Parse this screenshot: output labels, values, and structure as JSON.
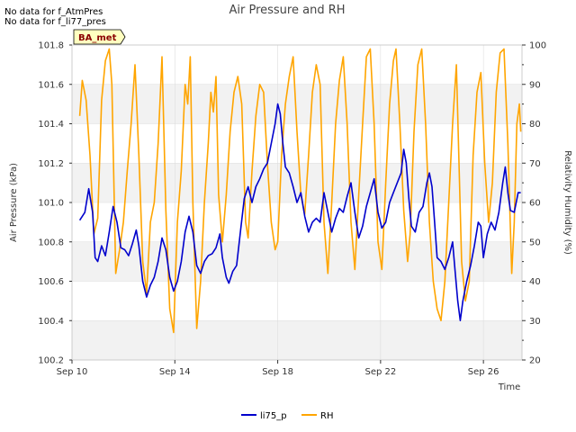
{
  "notes": [
    "No data for f_AtmPres",
    "No data for f_li77_pres"
  ],
  "site_badge": "BA_met",
  "colors": {
    "pressure": "#0000cc",
    "rh": "#ffa500",
    "band": "#f2f2f2",
    "grid": "#dddddd",
    "badge_bg": "#ffffc0",
    "badge_text": "#8b0000"
  },
  "chart_data": {
    "type": "line",
    "title": "Air Pressure and RH",
    "xlabel": "Time",
    "ylabel": "Air Pressure (kPa)",
    "y2label": "Relativity Humidity (%)",
    "xlim": [
      10.0,
      27.5
    ],
    "ylim": [
      100.2,
      101.8
    ],
    "y2lim": [
      20,
      100
    ],
    "xticks": [
      {
        "x": 10,
        "label": "Sep 10"
      },
      {
        "x": 14,
        "label": "Sep 14"
      },
      {
        "x": 18,
        "label": "Sep 18"
      },
      {
        "x": 22,
        "label": "Sep 22"
      },
      {
        "x": 26,
        "label": "Sep 26"
      }
    ],
    "yticks": [
      "100.2",
      "100.4",
      "100.6",
      "100.8",
      "101.0",
      "101.2",
      "101.4",
      "101.6",
      "101.8"
    ],
    "y2ticks": [
      "20",
      "30",
      "40",
      "50",
      "60",
      "70",
      "80",
      "90",
      "100"
    ],
    "legend_position": "bottom-center",
    "grid": true,
    "series": [
      {
        "name": "li75_p",
        "axis": "left",
        "color": "#0000cc",
        "points": [
          [
            10.3,
            100.91
          ],
          [
            10.5,
            100.95
          ],
          [
            10.65,
            101.07
          ],
          [
            10.8,
            100.95
          ],
          [
            10.9,
            100.72
          ],
          [
            11.0,
            100.7
          ],
          [
            11.15,
            100.78
          ],
          [
            11.3,
            100.73
          ],
          [
            11.45,
            100.85
          ],
          [
            11.6,
            100.98
          ],
          [
            11.75,
            100.9
          ],
          [
            11.9,
            100.77
          ],
          [
            12.05,
            100.76
          ],
          [
            12.2,
            100.73
          ],
          [
            12.35,
            100.79
          ],
          [
            12.5,
            100.86
          ],
          [
            12.6,
            100.78
          ],
          [
            12.75,
            100.6
          ],
          [
            12.9,
            100.52
          ],
          [
            13.05,
            100.58
          ],
          [
            13.2,
            100.62
          ],
          [
            13.35,
            100.7
          ],
          [
            13.5,
            100.82
          ],
          [
            13.65,
            100.76
          ],
          [
            13.8,
            100.62
          ],
          [
            13.95,
            100.55
          ],
          [
            14.1,
            100.6
          ],
          [
            14.25,
            100.7
          ],
          [
            14.4,
            100.85
          ],
          [
            14.55,
            100.93
          ],
          [
            14.7,
            100.85
          ],
          [
            14.85,
            100.68
          ],
          [
            15.0,
            100.64
          ],
          [
            15.15,
            100.7
          ],
          [
            15.3,
            100.73
          ],
          [
            15.45,
            100.74
          ],
          [
            15.6,
            100.77
          ],
          [
            15.75,
            100.84
          ],
          [
            15.85,
            100.72
          ],
          [
            16.0,
            100.62
          ],
          [
            16.1,
            100.59
          ],
          [
            16.25,
            100.65
          ],
          [
            16.4,
            100.68
          ],
          [
            16.55,
            100.85
          ],
          [
            16.7,
            101.02
          ],
          [
            16.85,
            101.08
          ],
          [
            17.0,
            101.0
          ],
          [
            17.15,
            101.08
          ],
          [
            17.3,
            101.12
          ],
          [
            17.45,
            101.17
          ],
          [
            17.6,
            101.2
          ],
          [
            17.75,
            101.3
          ],
          [
            17.9,
            101.4
          ],
          [
            18.0,
            101.5
          ],
          [
            18.1,
            101.45
          ],
          [
            18.2,
            101.3
          ],
          [
            18.3,
            101.18
          ],
          [
            18.45,
            101.15
          ],
          [
            18.6,
            101.08
          ],
          [
            18.75,
            101.0
          ],
          [
            18.9,
            101.05
          ],
          [
            19.05,
            100.93
          ],
          [
            19.2,
            100.85
          ],
          [
            19.35,
            100.9
          ],
          [
            19.5,
            100.92
          ],
          [
            19.65,
            100.9
          ],
          [
            19.8,
            101.05
          ],
          [
            19.95,
            100.95
          ],
          [
            20.1,
            100.85
          ],
          [
            20.25,
            100.92
          ],
          [
            20.4,
            100.97
          ],
          [
            20.55,
            100.95
          ],
          [
            20.7,
            101.03
          ],
          [
            20.85,
            101.1
          ],
          [
            21.0,
            100.95
          ],
          [
            21.15,
            100.82
          ],
          [
            21.3,
            100.88
          ],
          [
            21.45,
            100.98
          ],
          [
            21.6,
            101.05
          ],
          [
            21.75,
            101.12
          ],
          [
            21.9,
            100.95
          ],
          [
            22.05,
            100.87
          ],
          [
            22.2,
            100.9
          ],
          [
            22.35,
            101.0
          ],
          [
            22.5,
            101.05
          ],
          [
            22.65,
            101.1
          ],
          [
            22.8,
            101.15
          ],
          [
            22.9,
            101.27
          ],
          [
            23.0,
            101.2
          ],
          [
            23.1,
            101.02
          ],
          [
            23.2,
            100.88
          ],
          [
            23.35,
            100.85
          ],
          [
            23.5,
            100.95
          ],
          [
            23.65,
            100.98
          ],
          [
            23.8,
            101.1
          ],
          [
            23.9,
            101.15
          ],
          [
            24.0,
            101.08
          ],
          [
            24.1,
            100.9
          ],
          [
            24.2,
            100.72
          ],
          [
            24.35,
            100.7
          ],
          [
            24.5,
            100.66
          ],
          [
            24.65,
            100.72
          ],
          [
            24.8,
            100.8
          ],
          [
            24.9,
            100.65
          ],
          [
            25.0,
            100.5
          ],
          [
            25.1,
            100.4
          ],
          [
            25.2,
            100.5
          ],
          [
            25.35,
            100.6
          ],
          [
            25.5,
            100.68
          ],
          [
            25.65,
            100.78
          ],
          [
            25.8,
            100.9
          ],
          [
            25.9,
            100.88
          ],
          [
            26.0,
            100.72
          ],
          [
            26.15,
            100.84
          ],
          [
            26.3,
            100.9
          ],
          [
            26.45,
            100.86
          ],
          [
            26.6,
            100.95
          ],
          [
            26.75,
            101.1
          ],
          [
            26.85,
            101.18
          ],
          [
            26.95,
            101.05
          ],
          [
            27.05,
            100.96
          ],
          [
            27.2,
            100.95
          ],
          [
            27.35,
            101.05
          ],
          [
            27.45,
            101.05
          ]
        ]
      },
      {
        "name": "RH",
        "axis": "right",
        "color": "#ffa500",
        "points": [
          [
            10.3,
            82
          ],
          [
            10.4,
            91
          ],
          [
            10.55,
            86
          ],
          [
            10.7,
            72
          ],
          [
            10.85,
            52
          ],
          [
            11.0,
            56
          ],
          [
            11.15,
            86
          ],
          [
            11.3,
            96
          ],
          [
            11.45,
            99
          ],
          [
            11.55,
            90
          ],
          [
            11.7,
            42
          ],
          [
            11.85,
            48
          ],
          [
            12.0,
            55
          ],
          [
            12.15,
            68
          ],
          [
            12.3,
            80
          ],
          [
            12.45,
            95
          ],
          [
            12.6,
            72
          ],
          [
            12.75,
            45
          ],
          [
            12.9,
            37
          ],
          [
            13.05,
            55
          ],
          [
            13.2,
            60
          ],
          [
            13.35,
            75
          ],
          [
            13.5,
            97
          ],
          [
            13.65,
            58
          ],
          [
            13.8,
            33
          ],
          [
            13.95,
            27
          ],
          [
            14.1,
            55
          ],
          [
            14.25,
            68
          ],
          [
            14.4,
            90
          ],
          [
            14.5,
            85
          ],
          [
            14.6,
            97
          ],
          [
            14.7,
            60
          ],
          [
            14.85,
            28
          ],
          [
            15.0,
            40
          ],
          [
            15.15,
            60
          ],
          [
            15.3,
            75
          ],
          [
            15.4,
            88
          ],
          [
            15.5,
            83
          ],
          [
            15.6,
            92
          ],
          [
            15.7,
            62
          ],
          [
            15.85,
            50
          ],
          [
            16.0,
            62
          ],
          [
            16.15,
            78
          ],
          [
            16.3,
            88
          ],
          [
            16.45,
            92
          ],
          [
            16.6,
            85
          ],
          [
            16.75,
            55
          ],
          [
            16.85,
            51
          ],
          [
            17.0,
            68
          ],
          [
            17.15,
            82
          ],
          [
            17.3,
            90
          ],
          [
            17.45,
            88
          ],
          [
            17.6,
            70
          ],
          [
            17.75,
            55
          ],
          [
            17.9,
            48
          ],
          [
            18.0,
            50
          ],
          [
            18.15,
            72
          ],
          [
            18.3,
            85
          ],
          [
            18.45,
            92
          ],
          [
            18.6,
            97
          ],
          [
            18.75,
            78
          ],
          [
            18.9,
            62
          ],
          [
            19.05,
            57
          ],
          [
            19.2,
            72
          ],
          [
            19.35,
            88
          ],
          [
            19.5,
            95
          ],
          [
            19.65,
            90
          ],
          [
            19.8,
            55
          ],
          [
            19.95,
            42
          ],
          [
            20.1,
            60
          ],
          [
            20.25,
            80
          ],
          [
            20.4,
            91
          ],
          [
            20.55,
            97
          ],
          [
            20.7,
            80
          ],
          [
            20.85,
            55
          ],
          [
            21.0,
            43
          ],
          [
            21.15,
            62
          ],
          [
            21.3,
            80
          ],
          [
            21.45,
            97
          ],
          [
            21.6,
            99
          ],
          [
            21.75,
            80
          ],
          [
            21.9,
            50
          ],
          [
            22.05,
            43
          ],
          [
            22.2,
            65
          ],
          [
            22.35,
            85
          ],
          [
            22.5,
            96
          ],
          [
            22.6,
            99
          ],
          [
            22.75,
            80
          ],
          [
            22.9,
            58
          ],
          [
            23.05,
            45
          ],
          [
            23.15,
            52
          ],
          [
            23.3,
            78
          ],
          [
            23.45,
            95
          ],
          [
            23.6,
            99
          ],
          [
            23.75,
            80
          ],
          [
            23.9,
            55
          ],
          [
            24.05,
            40
          ],
          [
            24.2,
            33
          ],
          [
            24.35,
            30
          ],
          [
            24.5,
            40
          ],
          [
            24.65,
            60
          ],
          [
            24.8,
            80
          ],
          [
            24.95,
            95
          ],
          [
            25.05,
            70
          ],
          [
            25.15,
            45
          ],
          [
            25.3,
            35
          ],
          [
            25.45,
            40
          ],
          [
            25.6,
            72
          ],
          [
            25.75,
            88
          ],
          [
            25.9,
            93
          ],
          [
            26.05,
            70
          ],
          [
            26.2,
            55
          ],
          [
            26.35,
            65
          ],
          [
            26.5,
            88
          ],
          [
            26.65,
            98
          ],
          [
            26.8,
            99
          ],
          [
            26.95,
            75
          ],
          [
            27.1,
            42
          ],
          [
            27.2,
            55
          ],
          [
            27.3,
            80
          ],
          [
            27.4,
            85
          ],
          [
            27.45,
            78
          ]
        ]
      }
    ]
  }
}
